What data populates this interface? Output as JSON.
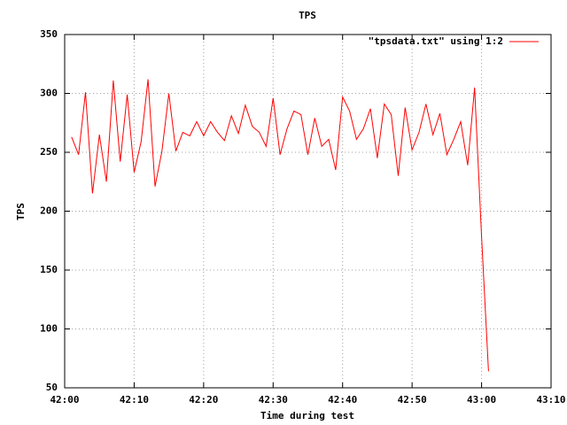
{
  "chart_data": {
    "type": "line",
    "title": "TPS",
    "x_label": "Time during test",
    "y_label": "TPS",
    "x": [
      "42:01",
      "42:02",
      "42:03",
      "42:04",
      "42:05",
      "42:06",
      "42:07",
      "42:08",
      "42:09",
      "42:10",
      "42:11",
      "42:12",
      "42:13",
      "42:14",
      "42:15",
      "42:16",
      "42:17",
      "42:18",
      "42:19",
      "42:20",
      "42:21",
      "42:22",
      "42:23",
      "42:24",
      "42:25",
      "42:26",
      "42:27",
      "42:28",
      "42:29",
      "42:30",
      "42:31",
      "42:32",
      "42:33",
      "42:34",
      "42:35",
      "42:36",
      "42:37",
      "42:38",
      "42:39",
      "42:40",
      "42:41",
      "42:42",
      "42:43",
      "42:44",
      "42:45",
      "42:46",
      "42:47",
      "42:48",
      "42:49",
      "42:50",
      "42:51",
      "42:52",
      "42:53",
      "42:54",
      "42:55",
      "42:56",
      "42:57",
      "42:58",
      "42:59",
      "43:00",
      "43:01"
    ],
    "series": [
      {
        "name": "\"tpsdata.txt\" using 1:2",
        "color": "#ff0000",
        "values": [
          263,
          248,
          301,
          215,
          265,
          225,
          311,
          242,
          299,
          233,
          259,
          312,
          221,
          251,
          300,
          251,
          267,
          264,
          276,
          264,
          276,
          267,
          260,
          281,
          266,
          290,
          272,
          267,
          255,
          296,
          248,
          270,
          285,
          282,
          248,
          279,
          255,
          261,
          235,
          297,
          285,
          261,
          270,
          287,
          245,
          291,
          282,
          230,
          288,
          252,
          267,
          291,
          265,
          283,
          248,
          261,
          276,
          239,
          305,
          178,
          64
        ]
      }
    ],
    "xlim": [
      "42:00",
      "43:10"
    ],
    "xticks": [
      "42:00",
      "42:10",
      "42:20",
      "42:30",
      "42:40",
      "42:50",
      "43:00",
      "43:10"
    ],
    "ylim": [
      50,
      350
    ],
    "yticks": [
      50,
      100,
      150,
      200,
      250,
      300,
      350
    ],
    "grid": true,
    "legend": "top-right"
  }
}
